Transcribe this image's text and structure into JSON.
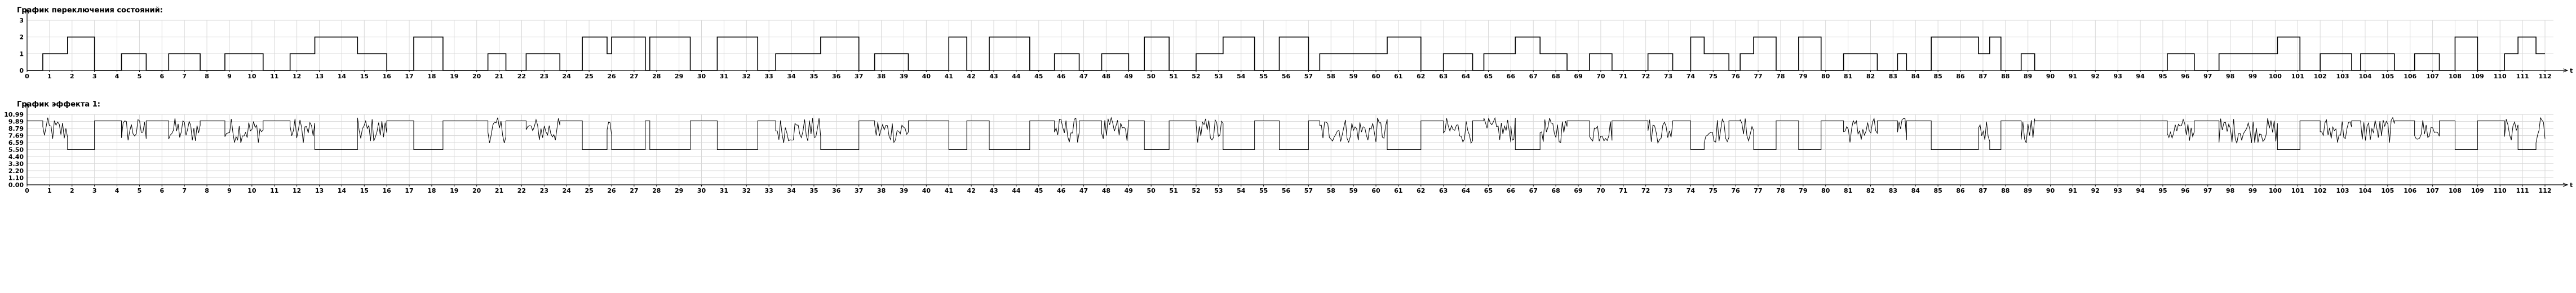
{
  "chart_data": [
    {
      "type": "line",
      "step": true,
      "title": "График переключения состояний:",
      "xlabel": "t",
      "ylabel": "",
      "xlim": [
        0,
        112
      ],
      "ylim": [
        0,
        3
      ],
      "x_ticks": [
        0,
        1,
        2,
        3,
        4,
        5,
        6,
        7,
        8,
        9,
        10,
        11,
        12,
        13,
        14,
        15,
        16,
        17,
        18,
        19,
        20,
        21,
        22,
        23,
        24,
        25,
        26,
        27,
        28,
        29,
        30,
        31,
        32,
        33,
        34,
        35,
        36,
        37,
        38,
        39,
        40,
        41,
        42,
        43,
        44,
        45,
        46,
        47,
        48,
        49,
        50,
        51,
        52,
        53,
        54,
        55,
        56,
        57,
        58,
        59,
        60,
        61,
        62,
        63,
        64,
        65,
        66,
        67,
        68,
        69,
        70,
        71,
        72,
        73,
        74,
        75,
        76,
        77,
        78,
        79,
        80,
        81,
        82,
        83,
        84,
        85,
        86,
        87,
        88,
        89,
        90,
        91,
        92,
        93,
        94,
        95,
        96,
        97,
        98,
        99,
        100,
        101,
        102,
        103,
        104,
        105,
        106,
        107,
        108,
        109,
        110,
        111,
        112
      ],
      "y_ticks": [
        0,
        1,
        2,
        3
      ],
      "grid": true,
      "series": [
        {
          "steps": [
            [
              0,
              0
            ],
            [
              0.7,
              1
            ],
            [
              1.8,
              2
            ],
            [
              3.0,
              0
            ],
            [
              4.2,
              1
            ],
            [
              5.3,
              0
            ],
            [
              6.3,
              1
            ],
            [
              7.7,
              0
            ],
            [
              8.8,
              1
            ],
            [
              10.5,
              0
            ],
            [
              11.7,
              1
            ],
            [
              12.8,
              2
            ],
            [
              14.7,
              1
            ],
            [
              16.0,
              0
            ],
            [
              17.2,
              2
            ],
            [
              18.5,
              0
            ],
            [
              20.5,
              1
            ],
            [
              21.3,
              0
            ],
            [
              22.2,
              1
            ],
            [
              23.3,
              1
            ],
            [
              23.7,
              0
            ],
            [
              24.7,
              2
            ],
            [
              25.8,
              1
            ],
            [
              26.0,
              2
            ],
            [
              27.5,
              0
            ],
            [
              27.7,
              2
            ],
            [
              29.5,
              0
            ],
            [
              30.7,
              2
            ],
            [
              32.5,
              0
            ],
            [
              33.3,
              1
            ],
            [
              35.3,
              2
            ],
            [
              37.0,
              0
            ],
            [
              37.7,
              1
            ],
            [
              39.2,
              0
            ],
            [
              41.0,
              2
            ],
            [
              41.8,
              0
            ],
            [
              42.8,
              2
            ],
            [
              44.6,
              0
            ],
            [
              45.7,
              1
            ],
            [
              46.8,
              0
            ],
            [
              47.8,
              1
            ],
            [
              49.0,
              0
            ],
            [
              49.7,
              2
            ],
            [
              50.8,
              0
            ],
            [
              52.0,
              1
            ],
            [
              53.2,
              2
            ],
            [
              54.6,
              0
            ],
            [
              55.7,
              2
            ],
            [
              57.0,
              0
            ],
            [
              57.5,
              1
            ],
            [
              60.5,
              2
            ],
            [
              62.0,
              0
            ],
            [
              63.0,
              1
            ],
            [
              64.3,
              0
            ],
            [
              64.8,
              1
            ],
            [
              66.0,
              1
            ],
            [
              66.2,
              2
            ],
            [
              67.3,
              1
            ],
            [
              68.5,
              0
            ],
            [
              69.5,
              1
            ],
            [
              70.5,
              0
            ],
            [
              72.1,
              1
            ],
            [
              73.2,
              0
            ],
            [
              74.0,
              2
            ],
            [
              74.6,
              1
            ],
            [
              75.7,
              0
            ],
            [
              76.2,
              1
            ],
            [
              76.8,
              2
            ],
            [
              77.8,
              0
            ],
            [
              78.8,
              2
            ],
            [
              79.8,
              0
            ],
            [
              80.8,
              1
            ],
            [
              82.3,
              0
            ],
            [
              83.2,
              1
            ],
            [
              83.6,
              0
            ],
            [
              84.7,
              2
            ],
            [
              86.8,
              1
            ],
            [
              87.3,
              2
            ],
            [
              87.8,
              0
            ],
            [
              88.7,
              1
            ],
            [
              89.3,
              0
            ],
            [
              95.2,
              1
            ],
            [
              96.4,
              0
            ],
            [
              97.5,
              1
            ],
            [
              100.1,
              2
            ],
            [
              101.1,
              0
            ],
            [
              102.0,
              1
            ],
            [
              103.4,
              0
            ],
            [
              103.8,
              1
            ],
            [
              105.3,
              0
            ],
            [
              106.2,
              1
            ],
            [
              107.3,
              0
            ],
            [
              108.0,
              2
            ],
            [
              109.0,
              0
            ],
            [
              110.2,
              1
            ],
            [
              110.8,
              2
            ],
            [
              111.6,
              1
            ],
            [
              112,
              1
            ]
          ]
        }
      ]
    },
    {
      "type": "line",
      "title": "График эффекта 1:",
      "xlabel": "t",
      "ylabel": "",
      "xlim": [
        0,
        112
      ],
      "ylim": [
        0,
        11
      ],
      "x_ticks": [
        0,
        1,
        2,
        3,
        4,
        5,
        6,
        7,
        8,
        9,
        10,
        11,
        12,
        13,
        14,
        15,
        16,
        17,
        18,
        19,
        20,
        21,
        22,
        23,
        24,
        25,
        26,
        27,
        28,
        29,
        30,
        31,
        32,
        33,
        34,
        35,
        36,
        37,
        38,
        39,
        40,
        41,
        42,
        43,
        44,
        45,
        46,
        47,
        48,
        49,
        50,
        51,
        52,
        53,
        54,
        55,
        56,
        57,
        58,
        59,
        60,
        61,
        62,
        63,
        64,
        65,
        66,
        67,
        68,
        69,
        70,
        71,
        72,
        73,
        74,
        75,
        76,
        77,
        78,
        79,
        80,
        81,
        82,
        83,
        84,
        85,
        86,
        87,
        88,
        89,
        90,
        91,
        92,
        93,
        94,
        95,
        96,
        97,
        98,
        99,
        100,
        101,
        102,
        103,
        104,
        105,
        106,
        107,
        108,
        109,
        110,
        111,
        112
      ],
      "y_ticks": [
        "0.00",
        "1.10",
        "2.20",
        "3.30",
        "4.40",
        "5.50",
        "6.59",
        "7.69",
        "8.79",
        "9.89",
        "10.99"
      ],
      "y_tick_values": [
        0,
        1.1,
        2.2,
        3.3,
        4.4,
        5.5,
        6.59,
        7.69,
        8.79,
        9.89,
        10.99
      ],
      "grid": true,
      "series": [
        {
          "state_levels": {
            "0": 10.0,
            "1": "noisy 6.5-10.5",
            "2": 5.5
          },
          "noise_range": [
            6.5,
            10.5
          ]
        }
      ]
    }
  ]
}
